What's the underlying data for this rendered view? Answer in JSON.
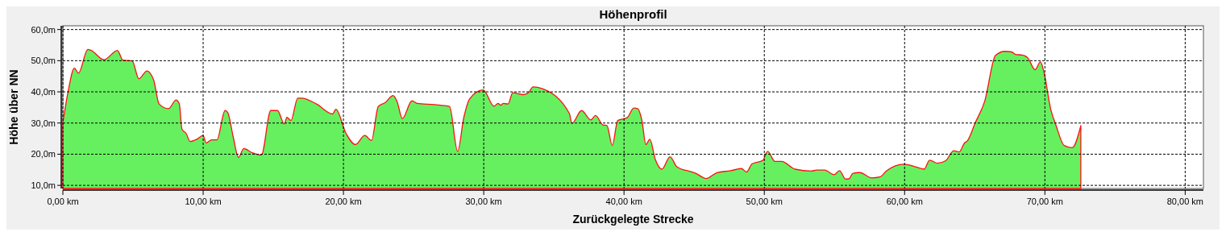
{
  "chart_data": {
    "type": "area",
    "title": "Höhenprofil",
    "xlabel": "Zurückgelegte Strecke",
    "ylabel": "Höhe über NN",
    "xlim": [
      0,
      81.3
    ],
    "ylim": [
      9,
      61.2
    ],
    "grid": true,
    "xticks": [
      {
        "value": 0,
        "label": "0,00 km"
      },
      {
        "value": 10,
        "label": "10,00 km"
      },
      {
        "value": 20,
        "label": "20,00 km"
      },
      {
        "value": 30,
        "label": "30,00 km"
      },
      {
        "value": 40,
        "label": "40,00 km"
      },
      {
        "value": 50,
        "label": "50,00 km"
      },
      {
        "value": 60,
        "label": "60,00 km"
      },
      {
        "value": 70,
        "label": "70,00 km"
      },
      {
        "value": 80,
        "label": "80,00 km"
      }
    ],
    "yticks": [
      {
        "value": 10,
        "label": "10,0m"
      },
      {
        "value": 20,
        "label": "20,0m"
      },
      {
        "value": 30,
        "label": "30,0m"
      },
      {
        "value": 40,
        "label": "40,0m"
      },
      {
        "value": 50,
        "label": "50,0m"
      },
      {
        "value": 60,
        "label": "60,0m"
      }
    ],
    "series": [
      {
        "color": "#66f060",
        "x": [
          0,
          0.35,
          0.82,
          1.11,
          1.78,
          1.97,
          2.93,
          3.89,
          4.27,
          4.94,
          5.42,
          5.99,
          6.47,
          6.86,
          7.53,
          8.07,
          8.3,
          8.49,
          8.78,
          9.07,
          9.55,
          9.99,
          10.22,
          10.6,
          10.98,
          11.56,
          11.75,
          12.13,
          12.52,
          12.9,
          13.48,
          14.15,
          14.82,
          15.3,
          15.78,
          15.97,
          16.26,
          16.74,
          17.02,
          18.08,
          19.23,
          19.46,
          20.18,
          20.85,
          21.52,
          22.0,
          22.48,
          22.96,
          23.54,
          23.82,
          24.2,
          24.88,
          25.26,
          26.51,
          27.56,
          28.14,
          28.58,
          29.0,
          29.96,
          30.73,
          31.02,
          31.21,
          31.4,
          31.73,
          32.07,
          32.84,
          33.22,
          33.51,
          34.18,
          36.1,
          36.29,
          36.97,
          37.64,
          37.97,
          38.49,
          38.78,
          39.16,
          39.55,
          40.22,
          40.7,
          40.98,
          41.27,
          41.56,
          41.84,
          42.23,
          42.7,
          43.28,
          43.76,
          45.1,
          45.86,
          46.63,
          47.59,
          48.36,
          48.74,
          49.12,
          49.89,
          50.24,
          50.75,
          51.23,
          52.19,
          53.34,
          53.73,
          54.3,
          54.97,
          55.36,
          55.8,
          56.03,
          56.32,
          56.8,
          57.66,
          58.24,
          58.72,
          59.96,
          60.73,
          61.39,
          61.78,
          62.35,
          62.93,
          63.5,
          63.89,
          64.27,
          64.46,
          65.04,
          65.71,
          66.48,
          67.15,
          67.63,
          67.91,
          68.39,
          68.78,
          69.3,
          69.68,
          69.93,
          70.41,
          70.79,
          71.37,
          71.95,
          72.56
        ],
        "values": [
          30.1,
          39.5,
          47.6,
          46.0,
          53.6,
          53.4,
          50.3,
          53.3,
          50.2,
          49.9,
          44.2,
          46.7,
          43.8,
          36.1,
          34.6,
          37.4,
          36.1,
          28.0,
          26.7,
          24.1,
          24.8,
          26.0,
          23.6,
          24.6,
          24.6,
          34.0,
          33.4,
          25.8,
          19.0,
          21.8,
          20.5,
          19.7,
          34.0,
          34.0,
          29.7,
          31.8,
          30.8,
          38.0,
          38.0,
          36.1,
          32.9,
          34.4,
          26.7,
          23.1,
          26.0,
          24.4,
          35.3,
          36.5,
          38.8,
          36.9,
          31.4,
          37.1,
          36.3,
          35.9,
          35.3,
          20.9,
          31.8,
          37.8,
          40.6,
          35.4,
          36.3,
          35.7,
          36.3,
          36.1,
          39.7,
          39.1,
          39.9,
          41.6,
          41.0,
          33.1,
          29.9,
          34.0,
          31.0,
          32.4,
          29.4,
          29.2,
          22.8,
          30.8,
          31.7,
          34.8,
          34.6,
          30.9,
          23.1,
          24.8,
          18.3,
          15.2,
          19.2,
          16.0,
          13.9,
          12.2,
          14.1,
          14.7,
          15.4,
          14.3,
          16.9,
          18.0,
          20.9,
          17.7,
          17.7,
          15.2,
          14.6,
          14.9,
          14.9,
          13.4,
          14.7,
          12.0,
          12.1,
          13.9,
          14.1,
          12.4,
          12.7,
          14.7,
          16.8,
          16.0,
          15.2,
          18.1,
          17.1,
          17.9,
          21.1,
          20.7,
          23.6,
          24.2,
          30.1,
          37.0,
          51.7,
          53.0,
          52.8,
          52.0,
          51.8,
          50.9,
          47.1,
          49.6,
          46.4,
          34.5,
          29.3,
          22.8,
          22.1,
          29.2
        ]
      }
    ]
  }
}
